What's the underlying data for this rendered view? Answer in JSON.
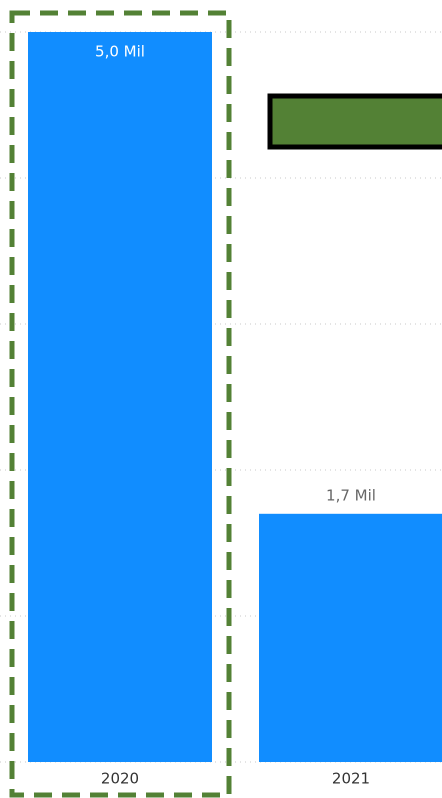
{
  "chart_data": {
    "type": "bar",
    "categories": [
      "2020",
      "2021"
    ],
    "values": [
      5000,
      1700
    ],
    "value_labels": [
      "5,0 Mil",
      "1,7 Mil"
    ],
    "color": "#118dff",
    "ylim": [
      0,
      5000
    ],
    "yticks": [
      0,
      1000,
      2000,
      3000,
      4000,
      5000
    ],
    "grid": true
  }
}
